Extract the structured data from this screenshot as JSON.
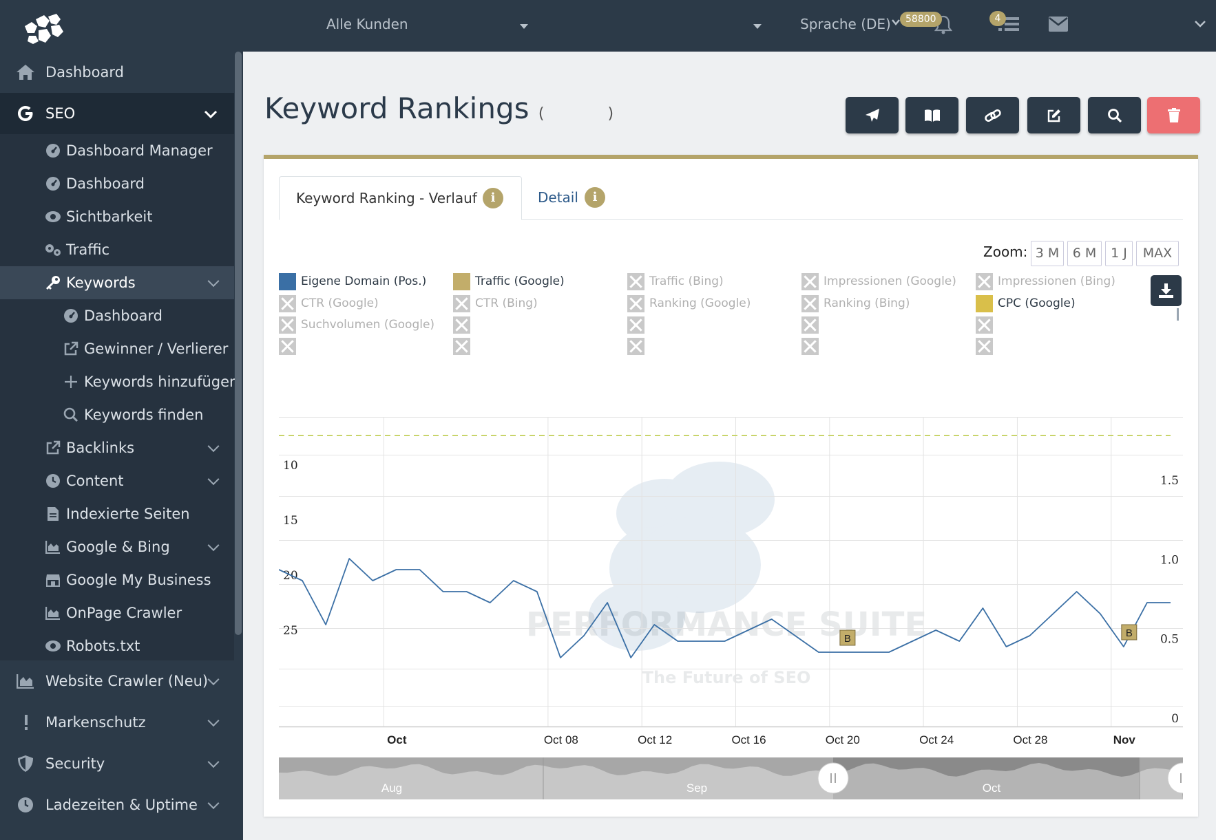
{
  "topbar": {
    "customer_select": "Alle Kunden",
    "language": "Sprache (DE)",
    "notifications_count": "58800",
    "tasks_count": "4",
    "icons": [
      "bell-icon",
      "list-icon",
      "envelope-icon",
      "chevron-down-icon"
    ]
  },
  "sidebar": {
    "items": [
      {
        "label": "Dashboard",
        "icon": "home-icon"
      },
      {
        "label": "SEO",
        "icon": "google-icon"
      },
      {
        "label": "Dashboard Manager",
        "icon": "dashboard-icon"
      },
      {
        "label": "Dashboard",
        "icon": "dashboard-icon"
      },
      {
        "label": "Sichtbarkeit",
        "icon": "eye-icon"
      },
      {
        "label": "Traffic",
        "icon": "cogs-icon"
      },
      {
        "label": "Keywords",
        "icon": "key-icon"
      },
      {
        "label": "Dashboard",
        "icon": "dashboard-icon"
      },
      {
        "label": "Gewinner / Verlierer",
        "icon": "external-link-icon"
      },
      {
        "label": "Keywords hinzufügen",
        "icon": "plus-icon"
      },
      {
        "label": "Keywords finden",
        "icon": "search-icon"
      },
      {
        "label": "Backlinks",
        "icon": "external-link-icon"
      },
      {
        "label": "Content",
        "icon": "clock-icon"
      },
      {
        "label": "Indexierte Seiten",
        "icon": "file-icon"
      },
      {
        "label": "Google & Bing",
        "icon": "area-chart-icon"
      },
      {
        "label": "Google My Business",
        "icon": "store-icon"
      },
      {
        "label": "OnPage Crawler",
        "icon": "area-chart-icon"
      },
      {
        "label": "Robots.txt",
        "icon": "eye-icon"
      },
      {
        "label": "Website Crawler (Neu)",
        "icon": "area-chart-icon"
      },
      {
        "label": "Markenschutz",
        "icon": "exclamation-icon"
      },
      {
        "label": "Security",
        "icon": "shield-icon"
      },
      {
        "label": "Ladezeiten & Uptime",
        "icon": "clock-icon"
      }
    ]
  },
  "page": {
    "title": "Keyword Rankings",
    "title_paren_open": "(",
    "title_paren_close": ")",
    "toolbar": [
      "paper-plane-icon",
      "book-icon",
      "link-icon",
      "edit-icon",
      "search-icon",
      "trash-icon"
    ]
  },
  "tabs": [
    {
      "label": "Keyword Ranking - Verlauf",
      "active": true
    },
    {
      "label": "Detail",
      "active": false
    }
  ],
  "zoom": {
    "label": "Zoom:",
    "options": [
      "3 M",
      "6 M",
      "1 J",
      "MAX"
    ]
  },
  "legend": [
    {
      "label": "Eigene Domain (Pos.)",
      "color": "#3a6fa5",
      "enabled": true
    },
    {
      "label": "Traffic (Google)",
      "color": "#c2ad6a",
      "enabled": true
    },
    {
      "label": "Traffic (Bing)",
      "enabled": false
    },
    {
      "label": "Impressionen (Google)",
      "enabled": false
    },
    {
      "label": "Impressionen (Bing)",
      "enabled": false
    },
    {
      "label": "CTR (Google)",
      "enabled": false
    },
    {
      "label": "CTR (Bing)",
      "enabled": false
    },
    {
      "label": "Ranking (Google)",
      "enabled": false
    },
    {
      "label": "Ranking (Bing)",
      "enabled": false
    },
    {
      "label": "CPC (Google)",
      "color": "#d9bf4a",
      "enabled": true
    },
    {
      "label": "Suchvolumen (Google)",
      "enabled": false
    },
    {
      "label": "",
      "enabled": false
    },
    {
      "label": "",
      "enabled": false
    },
    {
      "label": "",
      "enabled": false
    },
    {
      "label": "",
      "enabled": false
    },
    {
      "label": "",
      "enabled": false
    },
    {
      "label": "",
      "enabled": false
    },
    {
      "label": "",
      "enabled": false
    },
    {
      "label": "",
      "enabled": false
    },
    {
      "label": "",
      "enabled": false
    }
  ],
  "watermark": {
    "title": "PERFORMANCE SUITE",
    "subtitle": "The Future of SEO"
  },
  "chart_data": {
    "type": "line",
    "x_tick_labels": [
      "Oct",
      "Oct 08",
      "Oct 12",
      "Oct 16",
      "Oct 20",
      "Oct 24",
      "Oct 28",
      "Nov"
    ],
    "y_left_ticks": [
      10,
      15,
      20,
      25
    ],
    "y_left_reversed": true,
    "y_right_ticks": [
      0,
      0.5,
      1.0,
      1.5
    ],
    "y_right_tick_labels": [
      "0",
      "0.5",
      "1.0",
      "1.5"
    ],
    "series": [
      {
        "name": "Eigene Domain (Pos.)",
        "color": "#3a6fa5",
        "x": [
          "Sep 27",
          "Sep 28",
          "Sep 29",
          "Sep 30",
          "Oct 01",
          "Oct 02",
          "Oct 03",
          "Oct 04",
          "Oct 05",
          "Oct 06",
          "Oct 07",
          "Oct 08",
          "Oct 09",
          "Oct 10",
          "Oct 11",
          "Oct 12",
          "Oct 13",
          "Oct 14",
          "Oct 15",
          "Oct 16",
          "Oct 17",
          "Oct 18",
          "Oct 19",
          "Oct 20",
          "Oct 21",
          "Oct 22",
          "Oct 23",
          "Oct 24",
          "Oct 25",
          "Oct 26",
          "Oct 27",
          "Oct 28",
          "Oct 29",
          "Oct 30",
          "Oct 31",
          "Nov 01",
          "Nov 02",
          "Nov 03",
          "Nov 04"
        ],
        "values": [
          19,
          20,
          24,
          18,
          20,
          19,
          19,
          21,
          21,
          22,
          20,
          21,
          27,
          25,
          22,
          27,
          24,
          25.5,
          25.5,
          25.5,
          24.5,
          23.5,
          25,
          26.5,
          26.5,
          26.5,
          26.5,
          25.5,
          24.5,
          25.5,
          22.5,
          26,
          25,
          23,
          21,
          23,
          26,
          22,
          22
        ]
      }
    ],
    "annotations": [
      {
        "label": "B",
        "x": "Oct 21"
      },
      {
        "label": "B",
        "x": "Nov 02"
      }
    ],
    "reference_line": {
      "color": "#c8d46a",
      "style": "dashed"
    },
    "navigator": {
      "labels": [
        "Aug",
        "Sep",
        "Oct"
      ]
    }
  }
}
